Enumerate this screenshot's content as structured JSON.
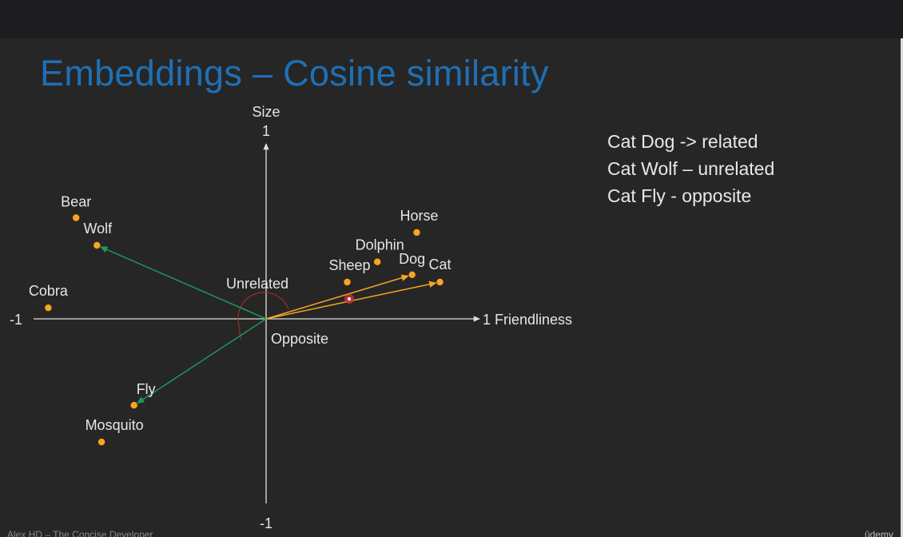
{
  "slide": {
    "title": "Embeddings – Cosine similarity",
    "notes": [
      "Cat Dog -> related",
      "Cat Wolf – unrelated",
      "Cat Fly - opposite"
    ],
    "footer_left": "Alex HD – The Concise Developer",
    "footer_right": "ûdemy"
  },
  "colors": {
    "background": "#262626",
    "title": "#1f6fb5",
    "point": "#f5a623",
    "related_arrow": "#f5a623",
    "unrelated_arrow": "#1a9a5a",
    "angle_arc": "#b0302a",
    "axis": "#e0e0e0"
  },
  "chart_data": {
    "type": "scatter",
    "xlabel": "Friendliness",
    "ylabel": "Size",
    "xlim": [
      -1,
      1
    ],
    "ylim": [
      -1,
      1
    ],
    "x_tick_labels": [
      "-1",
      "1"
    ],
    "y_tick_labels": [
      "1",
      "-1"
    ],
    "points": [
      {
        "label": "Bear",
        "x": -0.82,
        "y": 0.55
      },
      {
        "label": "Wolf",
        "x": -0.73,
        "y": 0.4
      },
      {
        "label": "Cobra",
        "x": -0.94,
        "y": 0.06
      },
      {
        "label": "Horse",
        "x": 0.65,
        "y": 0.47
      },
      {
        "label": "Dolphin",
        "x": 0.48,
        "y": 0.31
      },
      {
        "label": "Sheep",
        "x": 0.35,
        "y": 0.2
      },
      {
        "label": "Dog",
        "x": 0.63,
        "y": 0.24
      },
      {
        "label": "Cat",
        "x": 0.75,
        "y": 0.2
      },
      {
        "label": "Fly",
        "x": -0.57,
        "y": -0.47
      },
      {
        "label": "Mosquito",
        "x": -0.71,
        "y": -0.67
      }
    ],
    "vectors": [
      {
        "to": "Dog",
        "kind": "related"
      },
      {
        "to": "Cat",
        "kind": "related"
      },
      {
        "to": "Wolf",
        "kind": "unrelated"
      },
      {
        "to": "Fly",
        "kind": "unrelated"
      }
    ],
    "annotations": [
      "Unrelated",
      "Opposite"
    ]
  }
}
